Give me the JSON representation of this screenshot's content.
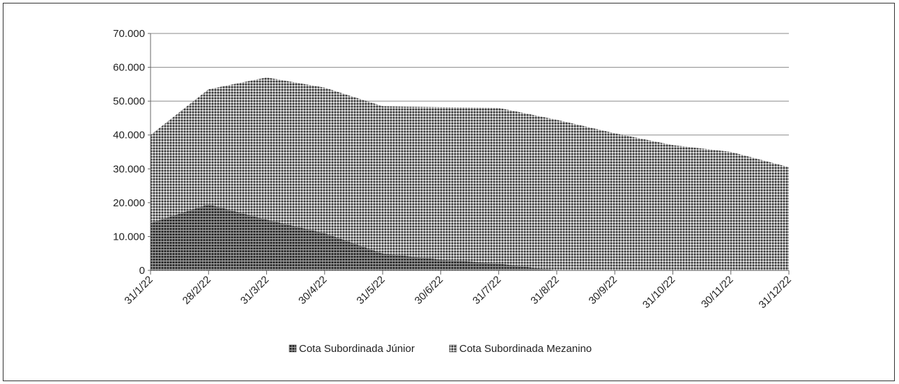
{
  "chart_data": {
    "type": "area",
    "stacked": true,
    "x": [
      "31/1/22",
      "28/2/22",
      "31/3/22",
      "30/4/22",
      "31/5/22",
      "30/6/22",
      "31/7/22",
      "31/8/22",
      "30/9/22",
      "31/10/22",
      "30/11/22",
      "31/12/22"
    ],
    "series": [
      {
        "name": "Cota Subordinada Júnior",
        "values": [
          14000,
          19500,
          15000,
          11000,
          5000,
          3200,
          2000,
          0,
          0,
          0,
          0,
          0
        ],
        "color": "#4a4a4a"
      },
      {
        "name": "Cota Subordinada Mezanino",
        "values": [
          26000,
          34000,
          42000,
          43000,
          43500,
          45000,
          46000,
          44500,
          40500,
          37000,
          35000,
          30500
        ],
        "color": "#8f8f8f"
      }
    ],
    "y_ticks": [
      "0",
      "10.000",
      "20.000",
      "30.000",
      "40.000",
      "50.000",
      "60.000",
      "70.000"
    ],
    "ylim": [
      0,
      70000
    ],
    "grid": true,
    "legend": "bottom"
  }
}
